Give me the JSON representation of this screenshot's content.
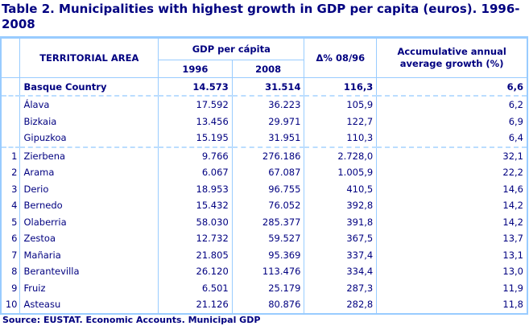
{
  "title": "Table 2. Municipalities with highest growth in GDP per capita (euros). 1996-2008",
  "headers": {
    "area": "TERRITORIAL AREA",
    "gdp": "GDP per cápita",
    "y1": "1996",
    "y2": "2008",
    "delta": "Δ% 08/96",
    "growth": "Accumulative annual average growth (%)"
  },
  "total": {
    "area": "Basque Country",
    "v1996": "14.573",
    "v2008": "31.514",
    "delta": "116,3",
    "growth": "6,6"
  },
  "provinces": [
    {
      "area": "Álava",
      "v1996": "17.592",
      "v2008": "36.223",
      "delta": "105,9",
      "growth": "6,2"
    },
    {
      "area": "Bizkaia",
      "v1996": "13.456",
      "v2008": "29.971",
      "delta": "122,7",
      "growth": "6,9"
    },
    {
      "area": "Gipuzkoa",
      "v1996": "15.195",
      "v2008": "31.951",
      "delta": "110,3",
      "growth": "6,4"
    }
  ],
  "municipalities": [
    {
      "rank": "1",
      "area": "Zierbena",
      "v1996": "9.766",
      "v2008": "276.186",
      "delta": "2.728,0",
      "growth": "32,1"
    },
    {
      "rank": "2",
      "area": "Arama",
      "v1996": "6.067",
      "v2008": "67.087",
      "delta": "1.005,9",
      "growth": "22,2"
    },
    {
      "rank": "3",
      "area": "Derio",
      "v1996": "18.953",
      "v2008": "96.755",
      "delta": "410,5",
      "growth": "14,6"
    },
    {
      "rank": "4",
      "area": "Bernedo",
      "v1996": "15.432",
      "v2008": "76.052",
      "delta": "392,8",
      "growth": "14,2"
    },
    {
      "rank": "5",
      "area": "Olaberria",
      "v1996": "58.030",
      "v2008": "285.377",
      "delta": "391,8",
      "growth": "14,2"
    },
    {
      "rank": "6",
      "area": "Zestoa",
      "v1996": "12.732",
      "v2008": "59.527",
      "delta": "367,5",
      "growth": "13,7"
    },
    {
      "rank": "7",
      "area": "Mañaria",
      "v1996": "21.805",
      "v2008": "95.369",
      "delta": "337,4",
      "growth": "13,1"
    },
    {
      "rank": "8",
      "area": "Berantevilla",
      "v1996": "26.120",
      "v2008": "113.476",
      "delta": "334,4",
      "growth": "13,0"
    },
    {
      "rank": "9",
      "area": "Fruiz",
      "v1996": "6.501",
      "v2008": "25.179",
      "delta": "287,3",
      "growth": "11,9"
    },
    {
      "rank": "10",
      "area": "Asteasu",
      "v1996": "21.126",
      "v2008": "80.876",
      "delta": "282,8",
      "growth": "11,8"
    }
  ],
  "source": "Source: EUSTAT. Economic Accounts. Municipal GDP"
}
